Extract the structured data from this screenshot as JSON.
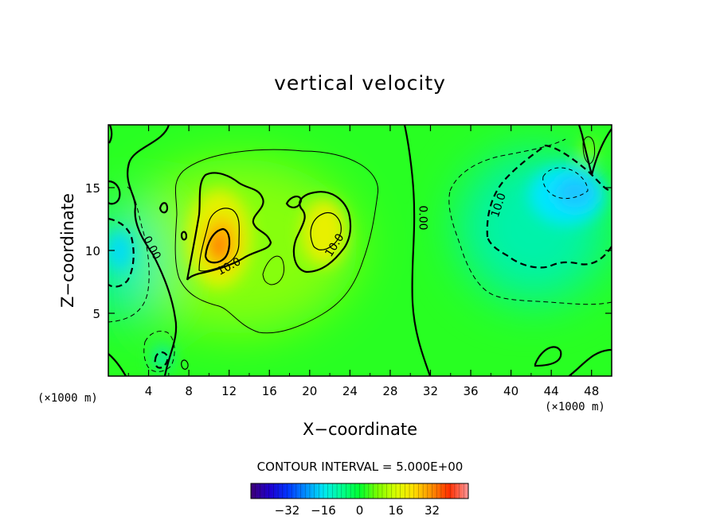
{
  "chart_data": {
    "type": "heatmap",
    "subtype": "filled-contour",
    "title": "vertical velocity",
    "xlabel": "X−coordinate",
    "ylabel": "Z−coordinate",
    "x_unit_label_left": "(×1000 m)",
    "x_unit_label_right": "(×1000 m)",
    "xlim": [
      0,
      50
    ],
    "ylim": [
      0,
      20
    ],
    "x_ticks": [
      4,
      8,
      12,
      16,
      20,
      24,
      28,
      32,
      36,
      40,
      44,
      48
    ],
    "y_ticks": [
      5,
      10,
      15
    ],
    "contour_interval_text": "CONTOUR INTERVAL = 5.000E+00",
    "contour_interval": 5.0,
    "contour_labels": [
      {
        "text": "0.00",
        "x": 4.3,
        "y": 10.2,
        "rotate": 62
      },
      {
        "text": "10.0",
        "x": 12.0,
        "y": 8.7,
        "rotate": -28
      },
      {
        "text": "10.0",
        "x": 22.5,
        "y": 10.4,
        "rotate": -58
      },
      {
        "text": "0.00",
        "x": 31.2,
        "y": 12.6,
        "rotate": 90
      },
      {
        "text": "10.0",
        "x": 38.8,
        "y": 13.6,
        "rotate": -72
      }
    ],
    "features": [
      {
        "x": 10.5,
        "y": 10.5,
        "value": 27,
        "kind": "updraft-max"
      },
      {
        "x": 21.0,
        "y": 11.5,
        "value": 17,
        "kind": "updraft"
      },
      {
        "x": 13.5,
        "y": 13.5,
        "value": 10,
        "kind": "updraft"
      },
      {
        "x": 46.0,
        "y": 14.0,
        "value": -20,
        "kind": "downdraft-min"
      },
      {
        "x": 1.5,
        "y": 10.5,
        "value": -13,
        "kind": "downdraft"
      },
      {
        "x": 5.0,
        "y": 1.5,
        "value": -11,
        "kind": "downdraft"
      },
      {
        "x": 1.5,
        "y": 14.8,
        "value": 3,
        "kind": "updraft"
      },
      {
        "x": 46.8,
        "y": 17.8,
        "value": 4,
        "kind": "updraft"
      },
      {
        "x": 44.5,
        "y": 1.6,
        "value": 3,
        "kind": "updraft"
      },
      {
        "x": 5.5,
        "y": 13.5,
        "value": 2,
        "kind": "updraft"
      }
    ],
    "colorbar": {
      "ticks": [
        -32,
        -16,
        0,
        16,
        32
      ],
      "tick_labels": [
        "−32",
        "−16",
        "0",
        "16",
        "32"
      ],
      "range": [
        -48,
        48
      ],
      "colors": [
        "#3c007a",
        "#1e00d0",
        "#0036ff",
        "#0090ff",
        "#00e8f2",
        "#00ff90",
        "#00ff30",
        "#7cff00",
        "#d8ff00",
        "#ffe000",
        "#ff9000",
        "#ff3000",
        "#ff9090"
      ]
    }
  }
}
